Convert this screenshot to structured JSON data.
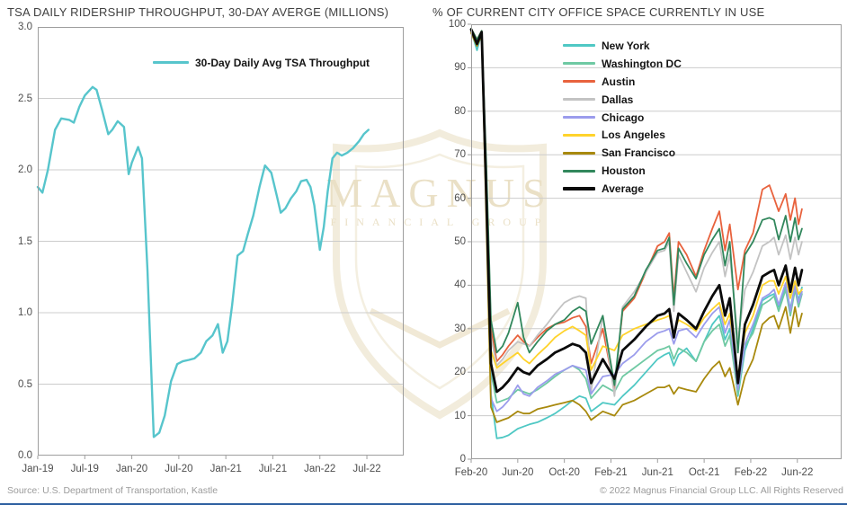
{
  "watermark": {
    "line1": "MAGNUS",
    "line2": "FINANCIAL GROUP",
    "color": "#eee5cf"
  },
  "footer_rule_color": "#2d5fa0",
  "chart_data": [
    {
      "id": "tsa",
      "type": "line",
      "title": "TSA DAILY RIDERSHIP THROUGHPUT, 30-DAY AVERGE (MILLIONS)",
      "source": "Source: U.S. Department of Transportation, Kastle",
      "xlabel": "",
      "ylabel": "",
      "x_unit": "months since Jan-2019",
      "x_tick_labels": [
        "Jan-19",
        "Jul-19",
        "Jan-20",
        "Jul-20",
        "Jan-21",
        "Jul-21",
        "Jan-22",
        "Jul-22"
      ],
      "x_tick_positions": [
        0,
        6,
        12,
        18,
        24,
        30,
        36,
        42
      ],
      "xlim": [
        0,
        46.7
      ],
      "ylim": [
        0,
        3
      ],
      "y_ticks": [
        0,
        0.5,
        1,
        1.5,
        2,
        2.5,
        3
      ],
      "y_tick_labels": [
        "0.0",
        "0.5",
        "1.0",
        "1.5",
        "2.0",
        "2.5",
        "3.0"
      ],
      "grid": true,
      "grid_color": "#cccccc",
      "legend_position": "top-center-inside",
      "x": [
        0,
        0.6,
        1.3,
        2.2,
        3,
        4,
        4.6,
        5.3,
        6,
        6.5,
        7,
        7.5,
        8.2,
        9,
        9.5,
        10.2,
        11,
        11.6,
        12,
        12.8,
        13.3,
        14,
        14.8,
        15.5,
        16.2,
        17,
        17.8,
        18.5,
        19.3,
        20,
        20.8,
        21.5,
        22.3,
        23,
        23.6,
        24.2,
        24.8,
        25.5,
        26.2,
        26.8,
        27.5,
        28.3,
        29,
        29.8,
        30.5,
        31,
        31.6,
        32.3,
        33,
        33.6,
        34.3,
        34.8,
        35.3,
        36,
        36.5,
        37,
        37.6,
        38.2,
        38.8,
        39.5,
        40.2,
        41,
        41.6,
        42.2
      ],
      "series": [
        {
          "name": "30-Day Daily Avg TSA Throughput",
          "color": "#57c5cc",
          "width": 2.4,
          "values": [
            1.88,
            1.84,
            2.0,
            2.28,
            2.36,
            2.35,
            2.33,
            2.44,
            2.52,
            2.55,
            2.58,
            2.56,
            2.42,
            2.25,
            2.28,
            2.34,
            2.3,
            1.97,
            2.05,
            2.16,
            2.08,
            1.3,
            0.13,
            0.16,
            0.28,
            0.52,
            0.64,
            0.66,
            0.67,
            0.68,
            0.72,
            0.8,
            0.84,
            0.92,
            0.72,
            0.8,
            1.05,
            1.4,
            1.43,
            1.55,
            1.68,
            1.88,
            2.03,
            1.98,
            1.82,
            1.7,
            1.73,
            1.8,
            1.85,
            1.92,
            1.93,
            1.88,
            1.75,
            1.44,
            1.6,
            1.85,
            2.08,
            2.12,
            2.1,
            2.12,
            2.15,
            2.2,
            2.25,
            2.28
          ]
        }
      ]
    },
    {
      "id": "office",
      "type": "line",
      "title": "% OF CURRENT CITY OFFICE SPACE CURRENTLY IN USE",
      "copyright": "© 2022 Magnus Financial Group LLC. All Rights Reserved",
      "xlabel": "",
      "ylabel": "",
      "x_unit": "months since Feb-2020",
      "x_tick_labels": [
        "Feb-20",
        "Jun-20",
        "Oct-20",
        "Feb-21",
        "Jun-21",
        "Oct-21",
        "Feb-22",
        "Jun-22"
      ],
      "x_tick_positions": [
        0,
        4,
        8,
        12,
        16,
        20,
        24,
        28
      ],
      "xlim": [
        0,
        31.8
      ],
      "ylim": [
        0,
        100
      ],
      "y_ticks": [
        0,
        10,
        20,
        30,
        40,
        50,
        60,
        70,
        80,
        90,
        100
      ],
      "y_tick_labels": [
        "0",
        "10",
        "20",
        "30",
        "40",
        "50",
        "60",
        "70",
        "80",
        "90",
        "100"
      ],
      "grid": true,
      "grid_color": "#cccccc",
      "left_ticks": true,
      "legend_position": "top-center-inside",
      "x": [
        0,
        0.5,
        0.9,
        1.3,
        1.7,
        2.2,
        2.7,
        3.2,
        4,
        4.5,
        5,
        5.7,
        6.5,
        7.2,
        8,
        8.7,
        9.3,
        9.85,
        10.3,
        11.3,
        12.3,
        13,
        14,
        15,
        16,
        16.6,
        17,
        17.4,
        17.8,
        18.5,
        19.3,
        20,
        20.7,
        21.3,
        21.8,
        22.2,
        22.9,
        23.5,
        24.2,
        25,
        25.6,
        26,
        26.4,
        27,
        27.4,
        27.8,
        28.1,
        28.4
      ],
      "series": [
        {
          "name": "New York",
          "color": "#4fc8c4",
          "values": [
            98.5,
            94,
            98,
            60,
            15,
            4.8,
            5,
            5.5,
            7,
            7.5,
            8,
            8.5,
            9.5,
            10.5,
            12,
            13.5,
            14.5,
            14,
            11,
            13,
            12.5,
            14.5,
            17,
            20,
            23,
            24,
            24.5,
            21.5,
            24,
            25.5,
            22.5,
            27,
            31,
            33,
            27.5,
            30,
            14.5,
            25,
            30,
            36.5,
            37.5,
            38,
            35,
            40,
            34.5,
            40,
            36.5,
            39.5
          ]
        },
        {
          "name": "Washington DC",
          "color": "#6fc9a3",
          "values": [
            98.5,
            95.5,
            98,
            62,
            20,
            13,
            13.5,
            14,
            16,
            15.5,
            15,
            16,
            17.5,
            19,
            20.5,
            21.5,
            20.5,
            18.5,
            14,
            17,
            15.5,
            19,
            21,
            23,
            25,
            25.5,
            26,
            23,
            25.5,
            24.5,
            22.5,
            27,
            29.5,
            31,
            26,
            28.5,
            15,
            26,
            29,
            35.5,
            36.5,
            37.5,
            34,
            39,
            33,
            39,
            35,
            38
          ]
        },
        {
          "name": "Austin",
          "color": "#e8623d",
          "values": [
            99,
            96.5,
            98.5,
            65,
            30,
            22.5,
            24,
            26,
            28.5,
            27,
            26,
            28,
            30,
            31,
            31.5,
            32.5,
            33,
            30.5,
            22,
            30,
            16,
            34,
            37,
            43,
            49,
            50,
            52,
            37,
            50,
            47,
            42,
            48,
            53,
            57,
            48,
            54,
            39,
            48,
            52,
            62,
            63,
            60,
            57,
            61,
            55,
            60,
            54,
            57.5
          ]
        },
        {
          "name": "Dallas",
          "color": "#c3c3c3",
          "values": [
            99,
            96,
            98.5,
            63,
            28,
            21.5,
            23,
            25,
            27,
            26.5,
            26,
            28.5,
            31,
            33.5,
            36,
            37,
            37.5,
            37,
            15.5,
            33,
            14.5,
            35,
            38.5,
            43,
            47.5,
            48,
            50,
            34,
            47,
            43,
            38.5,
            44,
            47.5,
            50,
            42,
            47,
            27.5,
            39,
            43,
            49,
            50,
            51,
            47,
            51.5,
            46,
            51,
            47,
            50
          ]
        },
        {
          "name": "Chicago",
          "color": "#9b9cec",
          "values": [
            98.5,
            95,
            98,
            58,
            14,
            11,
            12,
            13.5,
            17,
            15,
            14.5,
            16.5,
            18,
            19.5,
            20.5,
            21.5,
            21,
            20.5,
            15,
            19,
            19.5,
            22,
            24,
            27,
            29,
            29.5,
            30,
            26.5,
            29.5,
            30,
            28,
            31,
            33.5,
            35,
            29,
            32,
            16,
            26.5,
            31,
            37,
            38,
            39,
            35.5,
            40.5,
            34,
            40,
            36,
            38.5
          ]
        },
        {
          "name": "Los Angeles",
          "color": "#ffd32b",
          "values": [
            98.5,
            95.5,
            98,
            60,
            25,
            21,
            22,
            23,
            24.5,
            23,
            22,
            24,
            26,
            28,
            29.5,
            30.5,
            29.5,
            28.5,
            20.5,
            26,
            25,
            28.5,
            30,
            31,
            32,
            32.5,
            33,
            29,
            32,
            31,
            29.5,
            32.5,
            34.5,
            36,
            31,
            33.5,
            19,
            29,
            33,
            40,
            41,
            41,
            38,
            42,
            37,
            41,
            38,
            39
          ]
        },
        {
          "name": "San Francisco",
          "color": "#a8890d",
          "values": [
            98,
            95,
            97.5,
            55,
            12,
            8.5,
            9,
            9.5,
            11,
            10.5,
            10.5,
            11.5,
            12,
            12.5,
            13,
            13.5,
            12.5,
            11,
            9,
            11,
            10,
            12.5,
            13.5,
            15,
            16.5,
            16.5,
            17,
            15,
            16.5,
            16,
            15.5,
            18.5,
            21,
            22.5,
            19,
            21,
            12.5,
            19,
            23,
            31,
            32.5,
            33,
            30,
            35,
            29,
            35,
            30.5,
            33.5
          ]
        },
        {
          "name": "Houston",
          "color": "#31875c",
          "values": [
            99,
            96.5,
            98.5,
            68,
            32,
            24.5,
            26,
            29,
            36,
            28,
            24.5,
            27,
            29.5,
            31,
            32,
            34,
            35,
            34,
            26.5,
            33,
            17,
            34.5,
            37.5,
            43.5,
            48,
            48.5,
            51,
            35.5,
            48.5,
            45,
            41.5,
            47,
            50.5,
            53,
            44.5,
            50,
            24.5,
            47,
            50,
            55,
            55.5,
            55,
            50.5,
            56,
            50,
            55.5,
            50.5,
            53
          ]
        },
        {
          "name": "Average",
          "color": "#0a0a0a",
          "width": 2.8,
          "values": [
            98.8,
            95.5,
            98.2,
            61,
            22,
            15.5,
            16.5,
            18,
            21,
            20,
            19.5,
            21.5,
            23,
            24.5,
            25.5,
            26.5,
            26,
            24.5,
            17.5,
            23,
            18.5,
            25,
            27.5,
            30.5,
            33,
            33.5,
            34.5,
            28,
            33.5,
            32,
            30,
            34,
            37.5,
            40,
            33,
            37,
            17.5,
            31,
            35.5,
            42,
            43,
            43.5,
            40,
            44.5,
            38.5,
            44,
            40,
            43.5
          ]
        }
      ]
    }
  ]
}
